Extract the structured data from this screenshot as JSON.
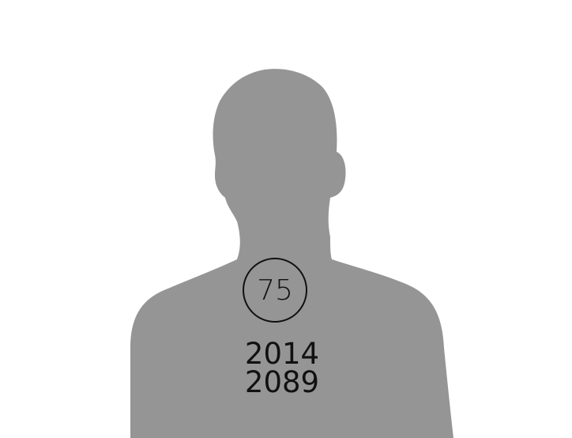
{
  "badge": {
    "number": "75"
  },
  "years": {
    "start": "2014",
    "end": "2089"
  },
  "colors": {
    "background": "#ffffff",
    "silhouette": "#959595",
    "text": "#111111"
  },
  "icons": {
    "figure": "person-silhouette-icon"
  }
}
